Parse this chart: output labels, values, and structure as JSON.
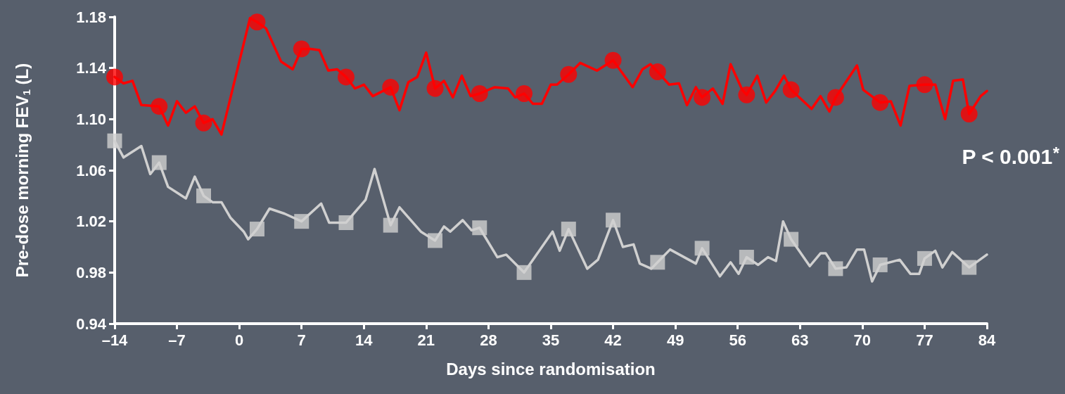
{
  "chart_data": {
    "type": "line",
    "xlabel": "Days since randomisation",
    "ylabel": "Pre-dose morning FEV$_{1}$ (L)",
    "annotations": [
      "P < 0.001*"
    ],
    "xlim": [
      -14,
      84
    ],
    "xticks": [
      {
        "value": -14,
        "label": "–14"
      },
      {
        "value": -7,
        "label": "–7"
      },
      0,
      7,
      14,
      21,
      28,
      35,
      42,
      49,
      56,
      63,
      70,
      77,
      84
    ],
    "ylim": [
      0.94,
      1.18
    ],
    "yticks": [
      0.94,
      0.98,
      1.02,
      1.06,
      {
        "value": 1.1,
        "label": "1.10"
      },
      1.14,
      1.18
    ],
    "grid": false,
    "series": [
      {
        "color": "#ff0000",
        "marker": "none",
        "line_style": "solid",
        "x": [
          -14,
          -13,
          -12,
          -11,
          -9,
          -8,
          -7,
          -6,
          -5,
          -4,
          -3,
          -2,
          1.2,
          2,
          3,
          4.7,
          6,
          7,
          8,
          9,
          10,
          11,
          12,
          13,
          14,
          15,
          17,
          18,
          19,
          20,
          21,
          22,
          23,
          24,
          25,
          26,
          27,
          28.7,
          30.2,
          31,
          32,
          33,
          34,
          35,
          35.7,
          37,
          38.3,
          40.2,
          42,
          44.2,
          45.3,
          46.2,
          47,
          48.3,
          49.4,
          50.3,
          51.3,
          52,
          53.2,
          54.3,
          55.2,
          56.5,
          57,
          58.2,
          59.2,
          60.2,
          61.2,
          62,
          64.3,
          65.3,
          66.3,
          67,
          69.4,
          70.1,
          72,
          73.2,
          74.3,
          75.3,
          77,
          78.2,
          79.3,
          80.2,
          81.3,
          82,
          83.3,
          84
        ],
        "values": [
          1.133,
          1.128,
          1.13,
          1.111,
          1.11,
          1.095,
          1.114,
          1.105,
          1.11,
          1.097,
          1.1,
          1.088,
          1.179,
          1.176,
          1.171,
          1.145,
          1.139,
          1.155,
          1.155,
          1.154,
          1.138,
          1.139,
          1.133,
          1.124,
          1.127,
          1.118,
          1.125,
          1.107,
          1.129,
          1.133,
          1.152,
          1.124,
          1.13,
          1.117,
          1.134,
          1.118,
          1.12,
          1.125,
          1.124,
          1.117,
          1.12,
          1.112,
          1.112,
          1.127,
          1.127,
          1.135,
          1.144,
          1.138,
          1.146,
          1.125,
          1.139,
          1.143,
          1.137,
          1.127,
          1.128,
          1.111,
          1.125,
          1.117,
          1.124,
          1.112,
          1.143,
          1.123,
          1.119,
          1.134,
          1.113,
          1.122,
          1.134,
          1.123,
          1.108,
          1.118,
          1.106,
          1.117,
          1.142,
          1.123,
          1.113,
          1.114,
          1.095,
          1.126,
          1.127,
          1.127,
          1.1,
          1.13,
          1.131,
          1.104,
          1.118,
          1.122
        ]
      },
      {
        "type": "scatter",
        "color": "#ff0000",
        "marker": "circle",
        "x": [
          -14,
          -9,
          -4,
          2,
          7,
          12,
          17,
          22,
          27,
          32,
          37,
          42,
          47,
          52,
          57,
          62,
          67,
          72,
          77,
          82
        ],
        "values": [
          1.133,
          1.11,
          1.097,
          1.176,
          1.155,
          1.133,
          1.125,
          1.124,
          1.12,
          1.12,
          1.135,
          1.146,
          1.137,
          1.117,
          1.119,
          1.123,
          1.117,
          1.113,
          1.127,
          1.104
        ]
      },
      {
        "color": "#d0d0d0",
        "marker": "none",
        "line_style": "solid",
        "x": [
          -14,
          -13,
          -11,
          -10,
          -9,
          -8,
          -6,
          -5,
          -4,
          -3,
          -2,
          -1,
          0.5,
          1,
          2,
          3.4,
          5.1,
          7,
          9.2,
          10.1,
          12,
          14.2,
          15.2,
          17,
          18,
          20.4,
          22,
          23,
          23.7,
          25.1,
          26.1,
          27,
          29,
          30,
          32,
          35.2,
          36,
          37,
          39.1,
          40.3,
          42,
          43.1,
          44.3,
          45,
          46.3,
          47,
          48.4,
          51.3,
          52,
          54,
          55.2,
          56.1,
          57,
          58.3,
          59.4,
          60.3,
          61.1,
          62,
          64.1,
          65.3,
          65.9,
          67,
          68.2,
          69.4,
          70.2,
          71.1,
          72,
          74.2,
          75.4,
          76.4,
          77,
          78.2,
          79,
          80.1,
          82,
          84
        ],
        "values": [
          1.083,
          1.07,
          1.079,
          1.057,
          1.066,
          1.047,
          1.038,
          1.055,
          1.04,
          1.035,
          1.035,
          1.023,
          1.012,
          1.006,
          1.014,
          1.03,
          1.026,
          1.02,
          1.034,
          1.019,
          1.019,
          1.037,
          1.061,
          1.017,
          1.031,
          1.012,
          1.005,
          1.016,
          1.012,
          1.021,
          1.013,
          1.015,
          0.992,
          0.994,
          0.98,
          1.012,
          0.997,
          1.014,
          0.983,
          0.99,
          1.021,
          1.0,
          1.002,
          0.987,
          0.983,
          0.988,
          0.998,
          0.987,
          0.999,
          0.977,
          0.988,
          0.979,
          0.992,
          0.986,
          0.992,
          0.989,
          1.02,
          1.006,
          0.985,
          0.995,
          0.995,
          0.983,
          0.984,
          0.998,
          0.998,
          0.973,
          0.986,
          0.99,
          0.979,
          0.979,
          0.991,
          0.997,
          0.984,
          0.996,
          0.984,
          0.994
        ]
      },
      {
        "type": "scatter",
        "color": "#d0d0d0",
        "marker": "square",
        "x": [
          -14,
          -9,
          -4,
          2,
          7,
          12,
          17,
          22,
          27,
          32,
          37,
          42,
          47,
          52,
          57,
          62,
          67,
          72,
          77,
          82
        ],
        "values": [
          1.083,
          1.066,
          1.04,
          1.014,
          1.02,
          1.019,
          1.017,
          1.005,
          1.015,
          0.98,
          1.014,
          1.021,
          0.988,
          0.999,
          0.992,
          1.006,
          0.983,
          0.986,
          0.991,
          0.984
        ]
      }
    ]
  }
}
